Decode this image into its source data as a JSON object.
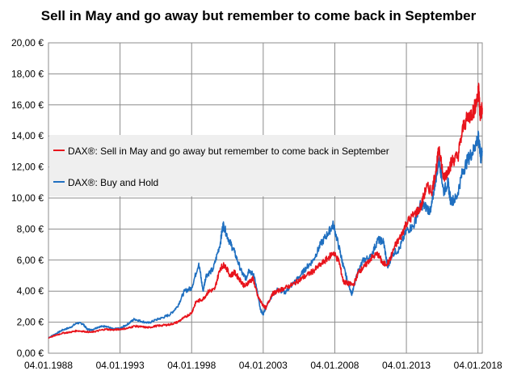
{
  "chart_data": {
    "type": "line",
    "title": "Sell in May and go away but remember to come back in September",
    "xlabel": "",
    "ylabel": "",
    "x_ticks": [
      "04.01.1988",
      "04.01.1993",
      "04.01.1998",
      "04.01.2003",
      "04.01.2008",
      "04.01.2013",
      "04.01.2018"
    ],
    "y_ticks": [
      "0,00 €",
      "2,00 €",
      "4,00 €",
      "6,00 €",
      "8,00 €",
      "10,00 €",
      "12,00 €",
      "14,00 €",
      "16,00 €",
      "18,00 €",
      "20,00 €"
    ],
    "xlim": [
      1988.0,
      2018.3
    ],
    "ylim": [
      0,
      20
    ],
    "grid": true,
    "legend_position": "center-left",
    "series": [
      {
        "name": "DAX®: Sell in May and go away but remember to come back in September",
        "color": "#e8141c",
        "points": [
          [
            1988.0,
            1.0
          ],
          [
            1988.5,
            1.15
          ],
          [
            1989.0,
            1.3
          ],
          [
            1989.5,
            1.35
          ],
          [
            1990.0,
            1.45
          ],
          [
            1990.5,
            1.4
          ],
          [
            1991.0,
            1.35
          ],
          [
            1991.5,
            1.45
          ],
          [
            1992.0,
            1.55
          ],
          [
            1992.5,
            1.5
          ],
          [
            1993.0,
            1.55
          ],
          [
            1993.5,
            1.6
          ],
          [
            1994.0,
            1.75
          ],
          [
            1994.5,
            1.7
          ],
          [
            1995.0,
            1.65
          ],
          [
            1995.5,
            1.75
          ],
          [
            1996.0,
            1.8
          ],
          [
            1996.5,
            1.85
          ],
          [
            1997.0,
            2.0
          ],
          [
            1997.5,
            2.3
          ],
          [
            1998.0,
            2.6
          ],
          [
            1998.3,
            3.3
          ],
          [
            1998.8,
            3.5
          ],
          [
            1999.2,
            4.0
          ],
          [
            1999.6,
            4.1
          ],
          [
            2000.0,
            5.5
          ],
          [
            2000.3,
            5.7
          ],
          [
            2000.7,
            5.0
          ],
          [
            2001.0,
            5.2
          ],
          [
            2001.4,
            4.7
          ],
          [
            2001.7,
            4.3
          ],
          [
            2002.0,
            4.6
          ],
          [
            2002.3,
            4.8
          ],
          [
            2002.6,
            3.7
          ],
          [
            2002.9,
            3.2
          ],
          [
            2003.2,
            2.9
          ],
          [
            2003.6,
            3.8
          ],
          [
            2004.0,
            4.0
          ],
          [
            2004.5,
            4.2
          ],
          [
            2005.0,
            4.4
          ],
          [
            2005.5,
            4.7
          ],
          [
            2006.0,
            5.0
          ],
          [
            2006.5,
            5.3
          ],
          [
            2007.0,
            5.7
          ],
          [
            2007.5,
            6.1
          ],
          [
            2007.9,
            6.5
          ],
          [
            2008.3,
            5.9
          ],
          [
            2008.6,
            4.6
          ],
          [
            2008.9,
            4.5
          ],
          [
            2009.3,
            4.4
          ],
          [
            2009.7,
            5.3
          ],
          [
            2010.0,
            5.5
          ],
          [
            2010.5,
            6.1
          ],
          [
            2011.0,
            6.4
          ],
          [
            2011.4,
            5.7
          ],
          [
            2011.8,
            5.9
          ],
          [
            2012.2,
            6.9
          ],
          [
            2012.6,
            7.5
          ],
          [
            2013.0,
            8.4
          ],
          [
            2013.5,
            8.9
          ],
          [
            2014.0,
            9.4
          ],
          [
            2014.4,
            10.7
          ],
          [
            2014.8,
            10.5
          ],
          [
            2015.1,
            12.0
          ],
          [
            2015.3,
            13.3
          ],
          [
            2015.6,
            11.2
          ],
          [
            2015.9,
            11.8
          ],
          [
            2016.2,
            12.4
          ],
          [
            2016.6,
            12.7
          ],
          [
            2017.0,
            14.7
          ],
          [
            2017.4,
            15.3
          ],
          [
            2017.7,
            15.6
          ],
          [
            2018.0,
            16.6
          ],
          [
            2018.05,
            17.0
          ],
          [
            2018.15,
            15.3
          ],
          [
            2018.3,
            15.8
          ]
        ]
      },
      {
        "name": "DAX®: Buy and Hold",
        "color": "#1f6fc0",
        "points": [
          [
            1988.0,
            1.0
          ],
          [
            1988.5,
            1.25
          ],
          [
            1989.0,
            1.5
          ],
          [
            1989.5,
            1.65
          ],
          [
            1990.0,
            1.95
          ],
          [
            1990.4,
            1.9
          ],
          [
            1990.7,
            1.55
          ],
          [
            1991.0,
            1.5
          ],
          [
            1991.5,
            1.7
          ],
          [
            1992.0,
            1.75
          ],
          [
            1992.5,
            1.55
          ],
          [
            1993.0,
            1.6
          ],
          [
            1993.5,
            1.85
          ],
          [
            1994.0,
            2.2
          ],
          [
            1994.5,
            2.05
          ],
          [
            1995.0,
            1.95
          ],
          [
            1995.5,
            2.15
          ],
          [
            1996.0,
            2.3
          ],
          [
            1996.5,
            2.5
          ],
          [
            1997.0,
            3.0
          ],
          [
            1997.5,
            4.0
          ],
          [
            1998.0,
            4.2
          ],
          [
            1998.5,
            5.8
          ],
          [
            1998.8,
            4.0
          ],
          [
            1999.0,
            5.0
          ],
          [
            1999.5,
            5.4
          ],
          [
            2000.0,
            7.1
          ],
          [
            2000.2,
            8.3
          ],
          [
            2000.6,
            7.3
          ],
          [
            2001.0,
            6.5
          ],
          [
            2001.5,
            5.2
          ],
          [
            2001.8,
            4.8
          ],
          [
            2002.0,
            5.4
          ],
          [
            2002.4,
            4.9
          ],
          [
            2002.8,
            2.8
          ],
          [
            2003.0,
            2.5
          ],
          [
            2003.2,
            3.0
          ],
          [
            2003.6,
            3.7
          ],
          [
            2004.0,
            4.1
          ],
          [
            2004.5,
            3.9
          ],
          [
            2005.0,
            4.4
          ],
          [
            2005.5,
            4.9
          ],
          [
            2006.0,
            5.5
          ],
          [
            2006.5,
            6.0
          ],
          [
            2007.0,
            7.0
          ],
          [
            2007.5,
            7.7
          ],
          [
            2007.9,
            8.3
          ],
          [
            2008.3,
            6.8
          ],
          [
            2008.6,
            5.6
          ],
          [
            2008.9,
            4.6
          ],
          [
            2009.2,
            3.8
          ],
          [
            2009.6,
            5.2
          ],
          [
            2010.0,
            6.0
          ],
          [
            2010.5,
            6.2
          ],
          [
            2011.0,
            7.3
          ],
          [
            2011.4,
            7.2
          ],
          [
            2011.7,
            5.5
          ],
          [
            2012.0,
            6.4
          ],
          [
            2012.5,
            6.7
          ],
          [
            2013.0,
            7.9
          ],
          [
            2013.5,
            8.2
          ],
          [
            2014.0,
            9.6
          ],
          [
            2014.4,
            9.4
          ],
          [
            2014.7,
            9.1
          ],
          [
            2015.0,
            11.0
          ],
          [
            2015.3,
            12.5
          ],
          [
            2015.6,
            10.4
          ],
          [
            2015.9,
            11.0
          ],
          [
            2016.1,
            9.8
          ],
          [
            2016.5,
            10.0
          ],
          [
            2016.9,
            11.6
          ],
          [
            2017.3,
            12.5
          ],
          [
            2017.7,
            13.1
          ],
          [
            2018.0,
            13.9
          ],
          [
            2018.1,
            13.5
          ],
          [
            2018.2,
            12.5
          ],
          [
            2018.3,
            13.0
          ]
        ]
      }
    ]
  }
}
